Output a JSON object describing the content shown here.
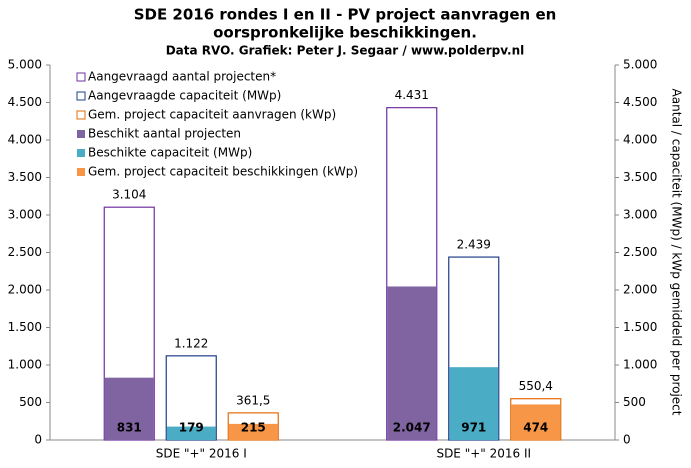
{
  "chart_data": {
    "type": "bar",
    "title": "SDE 2016 rondes I en II - PV project aanvragen en",
    "title_line2": "oorspronkelijke  beschikkingen.",
    "subtitle": "Data RVO. Grafiek: Peter J. Segaar / www.polderpv.nl",
    "y2_label": "Aantal / capaciteit (MWp) / kWp gemiddeld per project",
    "categories": [
      "SDE \"+\" 2016 I",
      "SDE \"+\" 2016 II"
    ],
    "series": [
      {
        "name": "Aangevraagd aantal projecten*",
        "color": "#7030a0",
        "style": "outline",
        "values": [
          3104,
          4431
        ],
        "value_labels": [
          "3.104",
          "4.431"
        ]
      },
      {
        "name": "Aangevraagde capaciteit (MWp)",
        "color": "#1f3c88",
        "style": "outline",
        "values": [
          1122,
          2439
        ],
        "value_labels": [
          "1.122",
          "2.439"
        ]
      },
      {
        "name": "Gem. project capaciteit aanvragen (kWp)",
        "color": "#e36c09",
        "style": "outline",
        "values": [
          361.5,
          550.4
        ],
        "value_labels": [
          "361,5",
          "550,4"
        ]
      },
      {
        "name": "Beschikt aantal projecten",
        "color": "#8064a2",
        "style": "filled",
        "values": [
          831,
          2047
        ],
        "value_labels": [
          "831",
          "2.047"
        ]
      },
      {
        "name": "Beschikte capaciteit (MWp)",
        "color": "#4bacc6",
        "style": "filled",
        "values": [
          179,
          971
        ],
        "value_labels": [
          "179",
          "971"
        ]
      },
      {
        "name": "Gem. project capaciteit beschikkingen (kWp)",
        "color": "#f79646",
        "style": "filled",
        "values": [
          215,
          474
        ],
        "value_labels": [
          "215",
          "474"
        ]
      }
    ],
    "ylim": [
      0,
      5000
    ],
    "yticks": [
      0,
      500,
      {
        "value": 1000,
        "label": "1.000"
      },
      {
        "value": 1500,
        "label": "1.500"
      },
      {
        "value": 2000,
        "label": "2.000"
      },
      {
        "value": 2500,
        "label": "2.500"
      },
      {
        "value": 3000,
        "label": "3.000"
      },
      {
        "value": 3500,
        "label": "3.500"
      },
      {
        "value": 4000,
        "label": "4.000"
      },
      {
        "value": 4500,
        "label": "4.500"
      },
      {
        "value": 5000,
        "label": "5.000"
      }
    ],
    "y2lim": [
      0,
      5000
    ],
    "y2ticks": [
      0,
      500,
      {
        "value": 1000,
        "label": "1.000"
      },
      {
        "value": 1500,
        "label": "1.500"
      },
      {
        "value": 2000,
        "label": "2.000"
      },
      {
        "value": 2500,
        "label": "2.500"
      },
      {
        "value": 3000,
        "label": "3.000"
      },
      {
        "value": 3500,
        "label": "3.500"
      },
      {
        "value": 4000,
        "label": "4.000"
      },
      {
        "value": 4500,
        "label": "4.500"
      },
      {
        "value": 5000,
        "label": "5.000"
      }
    ],
    "grid": false
  }
}
